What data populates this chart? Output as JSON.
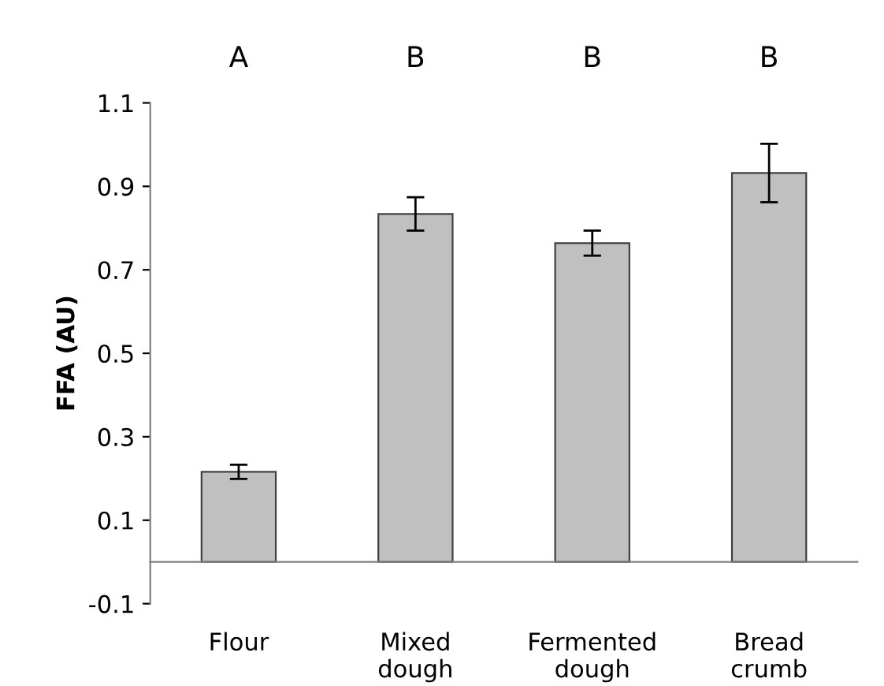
{
  "chart_data": {
    "type": "bar",
    "ylabel": "FFA (AU)",
    "categories": [
      "Flour",
      "Mixed\ndough",
      "Fermented\ndough",
      "Bread\ncrumb"
    ],
    "values": [
      0.216,
      0.834,
      0.764,
      0.932
    ],
    "errors": [
      0.017,
      0.04,
      0.03,
      0.07
    ],
    "color": "#c0c0c0",
    "ylim": [
      -0.1,
      1.1
    ],
    "yticks": [
      -0.1,
      0.1,
      0.3,
      0.5,
      0.7,
      0.9,
      1.1
    ],
    "grid": false,
    "annotations": [
      "A",
      "B",
      "B",
      "B"
    ]
  }
}
